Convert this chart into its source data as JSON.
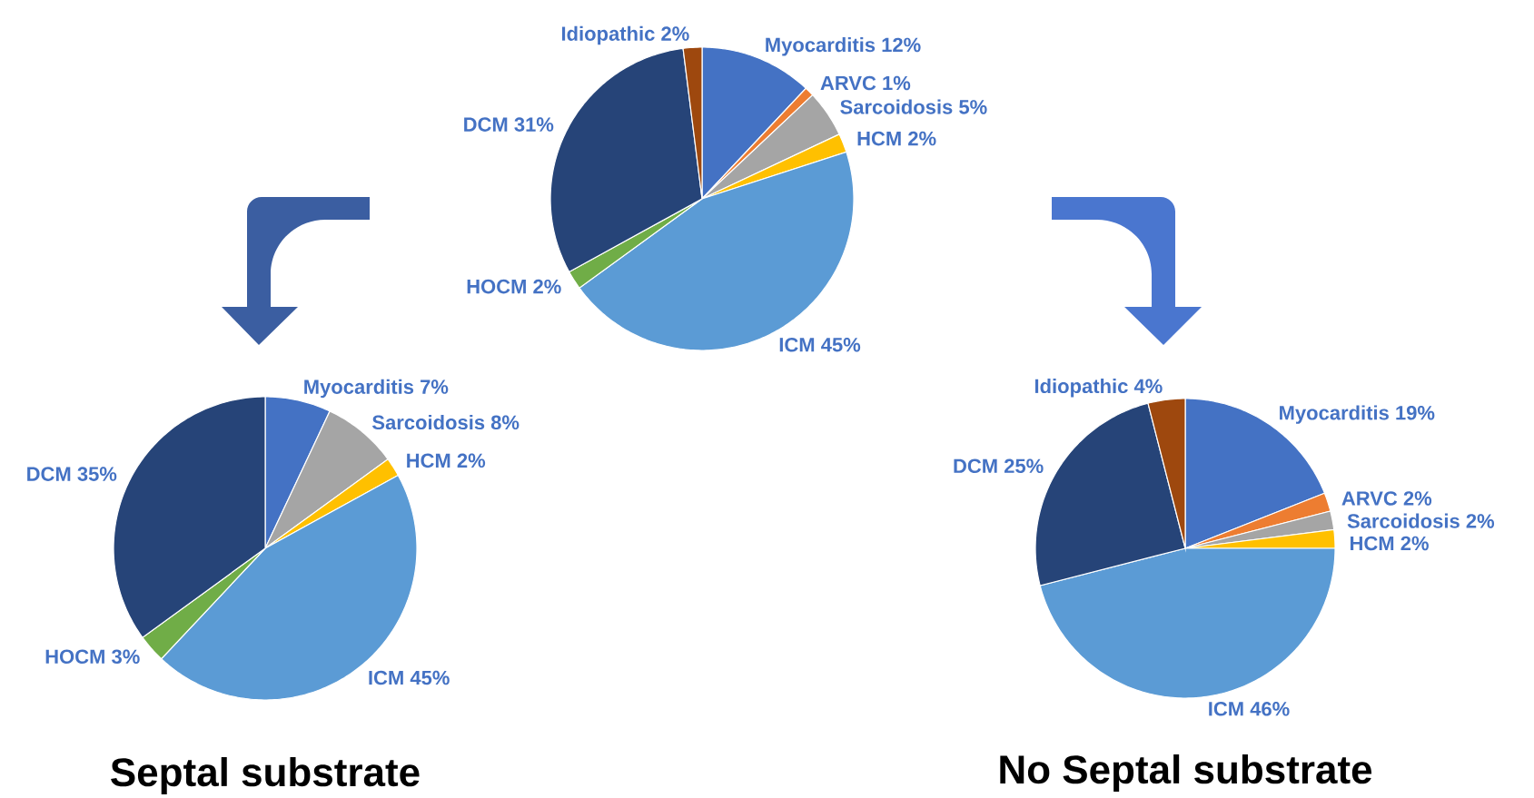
{
  "chart_data": [
    {
      "type": "pie",
      "categories": [
        "Myocarditis",
        "ARVC",
        "Sarcoidosis",
        "HCM",
        "ICM",
        "HOCM",
        "DCM",
        "Idiopathic"
      ],
      "values": [
        12,
        1,
        5,
        2,
        45,
        2,
        31,
        2
      ],
      "value_labels": [
        "12%",
        "1%",
        "5%",
        "2%",
        "45%",
        "2%",
        "31%",
        "2%"
      ],
      "colors": [
        "#4472c4",
        "#ed7d31",
        "#a5a5a5",
        "#ffc000",
        "#5b9bd5",
        "#70ad47",
        "#264478",
        "#9e480e"
      ]
    },
    {
      "type": "pie",
      "title": "Septal substrate",
      "categories": [
        "Myocarditis",
        "Sarcoidosis",
        "HCM",
        "ICM",
        "HOCM",
        "DCM"
      ],
      "values": [
        7,
        8,
        2,
        45,
        3,
        35
      ],
      "value_labels": [
        "7%",
        "8%",
        "2%",
        "45%",
        "3%",
        "35%"
      ],
      "colors": [
        "#4472c4",
        "#a5a5a5",
        "#ffc000",
        "#5b9bd5",
        "#70ad47",
        "#264478"
      ]
    },
    {
      "type": "pie",
      "title": "No Septal substrate",
      "categories": [
        "Myocarditis",
        "ARVC",
        "Sarcoidosis",
        "HCM",
        "ICM",
        "DCM",
        "Idiopathic"
      ],
      "values": [
        19,
        2,
        2,
        2,
        46,
        25,
        4
      ],
      "value_labels": [
        "19%",
        "2%",
        "2%",
        "2%",
        "46%",
        "25%",
        "4%"
      ],
      "colors": [
        "#4472c4",
        "#ed7d31",
        "#a5a5a5",
        "#ffc000",
        "#5b9bd5",
        "#264478",
        "#9e480e"
      ]
    }
  ]
}
